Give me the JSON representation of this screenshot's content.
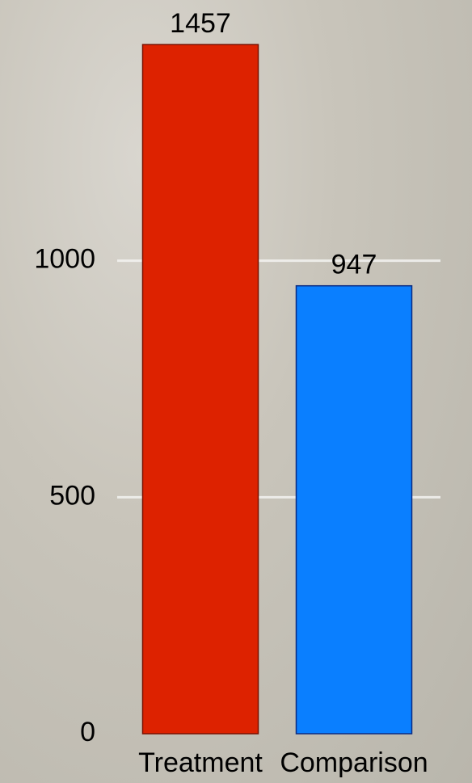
{
  "chart_data": {
    "type": "bar",
    "categories": [
      "Treatment",
      "Comparison"
    ],
    "values": [
      1457,
      947
    ],
    "colors": [
      "#dd2200",
      "#0a7fff"
    ],
    "ylim": [
      0,
      1500
    ],
    "yticks": [
      0,
      500,
      1000
    ],
    "grid": true
  }
}
